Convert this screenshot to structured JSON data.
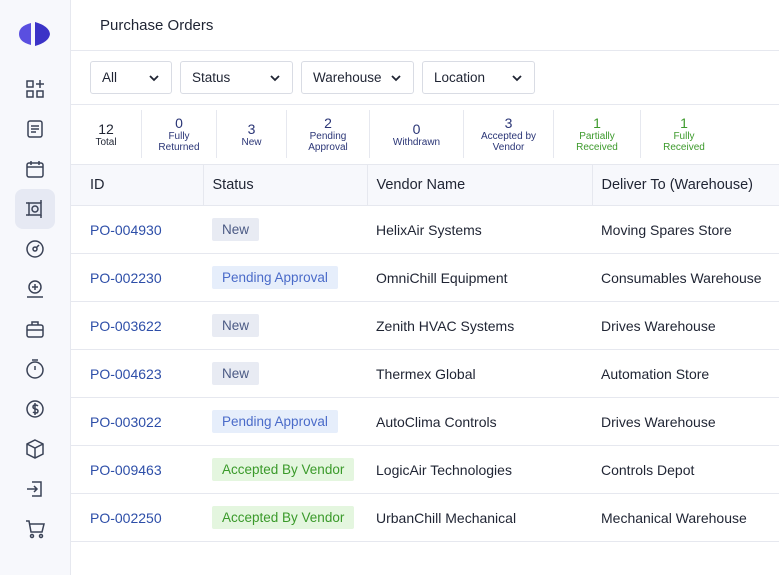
{
  "header": {
    "title": "Purchase Orders"
  },
  "filters": [
    "All",
    "Status",
    "Warehouse",
    "Location"
  ],
  "stats": [
    {
      "value": "12",
      "label": "Total",
      "color": "#1f2433"
    },
    {
      "value": "0",
      "label": "Fully Returned",
      "color": "#2a3576"
    },
    {
      "value": "3",
      "label": "New",
      "color": "#2a3576"
    },
    {
      "value": "2",
      "label": "Pending Approval",
      "color": "#2a3576"
    },
    {
      "value": "0",
      "label": "Withdrawn",
      "color": "#2a3576"
    },
    {
      "value": "3",
      "label": "Accepted by Vendor",
      "color": "#2a3576"
    },
    {
      "value": "1",
      "label": "Partially Received",
      "color": "#3d9a2c"
    },
    {
      "value": "1",
      "label": "Fully Received",
      "color": "#3d9a2c"
    }
  ],
  "table": {
    "columns": [
      "ID",
      "Status",
      "Vendor Name",
      "Deliver To (Warehouse)"
    ],
    "rows": [
      {
        "id": "PO-004930",
        "status": "New",
        "status_color": [
          "#e8ebf3",
          "#4b5a84"
        ],
        "vendor": "HelixAir Systems",
        "deliver_to": "Moving Spares Store"
      },
      {
        "id": "PO-002230",
        "status": "Pending Approval",
        "status_color": [
          "#e6eefb",
          "#4a6bc9"
        ],
        "vendor": "OmniChill Equipment",
        "deliver_to": "Consumables Warehouse"
      },
      {
        "id": "PO-003622",
        "status": "New",
        "status_color": [
          "#e8ebf3",
          "#4b5a84"
        ],
        "vendor": "Zenith HVAC Systems",
        "deliver_to": "Drives Warehouse"
      },
      {
        "id": "PO-004623",
        "status": "New",
        "status_color": [
          "#e8ebf3",
          "#4b5a84"
        ],
        "vendor": "Thermex Global",
        "deliver_to": "Automation Store"
      },
      {
        "id": "PO-003022",
        "status": "Pending Approval",
        "status_color": [
          "#e6eefb",
          "#4a6bc9"
        ],
        "vendor": "AutoClima Controls",
        "deliver_to": "Drives Warehouse"
      },
      {
        "id": "PO-009463",
        "status": "Accepted By Vendor",
        "status_color": [
          "#e4f6df",
          "#3a9a2a"
        ],
        "vendor": "LogicAir Technologies",
        "deliver_to": "Controls Depot"
      },
      {
        "id": "PO-002250",
        "status": "Accepted By Vendor",
        "status_color": [
          "#e4f6df",
          "#3a9a2a"
        ],
        "vendor": "UrbanChill Mechanical",
        "deliver_to": "Mechanical Warehouse"
      }
    ]
  }
}
